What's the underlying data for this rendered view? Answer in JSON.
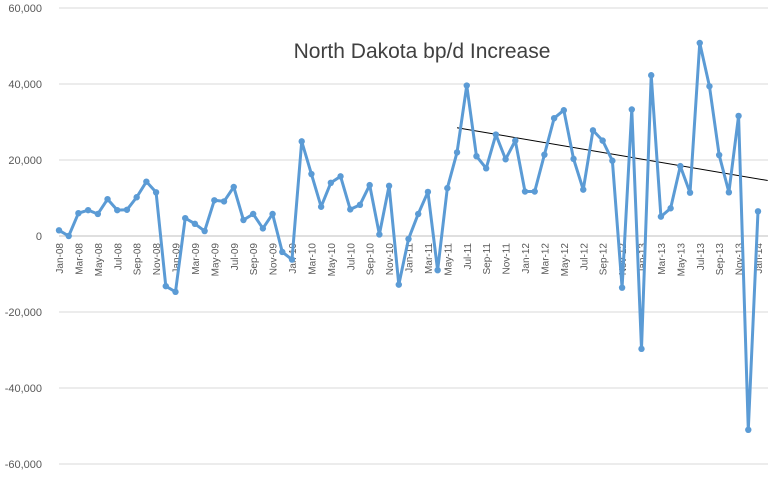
{
  "chart_data": {
    "type": "line",
    "title": "North Dakota bp/d Increase",
    "xlabel": "",
    "ylabel": "",
    "ylim": [
      -60000,
      60000
    ],
    "yticks": [
      -60000,
      -40000,
      -20000,
      0,
      20000,
      40000,
      60000
    ],
    "ytick_labels": [
      "-60,000",
      "-40,000",
      "-20,000",
      "0",
      "20,000",
      "40,000",
      "60,000"
    ],
    "grid": "horizontal",
    "legend": "none",
    "line_color": "#5B9BD5",
    "trendline_color": "#000000",
    "x": [
      "Jan-08",
      "Feb-08",
      "Mar-08",
      "Apr-08",
      "May-08",
      "Jun-08",
      "Jul-08",
      "Aug-08",
      "Sep-08",
      "Oct-08",
      "Nov-08",
      "Dec-08",
      "Jan-09",
      "Feb-09",
      "Mar-09",
      "Apr-09",
      "May-09",
      "Jun-09",
      "Jul-09",
      "Aug-09",
      "Sep-09",
      "Oct-09",
      "Nov-09",
      "Dec-09",
      "Jan-10",
      "Feb-10",
      "Mar-10",
      "Apr-10",
      "May-10",
      "Jun-10",
      "Jul-10",
      "Aug-10",
      "Sep-10",
      "Oct-10",
      "Nov-10",
      "Dec-10",
      "Jan-11",
      "Feb-11",
      "Mar-11",
      "Apr-11",
      "May-11",
      "Jun-11",
      "Jul-11",
      "Aug-11",
      "Sep-11",
      "Oct-11",
      "Nov-11",
      "Dec-11",
      "Jan-12",
      "Feb-12",
      "Mar-12",
      "Apr-12",
      "May-12",
      "Jun-12",
      "Jul-12",
      "Aug-12",
      "Sep-12",
      "Oct-12",
      "Nov-12",
      "Dec-12",
      "Jan-13",
      "Feb-13",
      "Mar-13",
      "Apr-13",
      "May-13",
      "Jun-13",
      "Jul-13",
      "Aug-13",
      "Sep-13",
      "Oct-13",
      "Nov-13",
      "Dec-13",
      "Jan-14"
    ],
    "xtick_labels": [
      "Jan-08",
      "Mar-08",
      "May-08",
      "Jul-08",
      "Sep-08",
      "Nov-08",
      "Jan-09",
      "Mar-09",
      "May-09",
      "Jul-09",
      "Sep-09",
      "Nov-09",
      "Jan-10",
      "Mar-10",
      "May-10",
      "Jul-10",
      "Sep-10",
      "Nov-10",
      "Jan-11",
      "Mar-11",
      "May-11",
      "Jul-11",
      "Sep-11",
      "Nov-11",
      "Jan-12",
      "Mar-12",
      "May-12",
      "Jul-12",
      "Sep-12",
      "Nov-12",
      "Jan-13",
      "Mar-13",
      "May-13",
      "Jul-13",
      "Sep-13",
      "Nov-13",
      "Jan-14"
    ],
    "series": [
      {
        "values": [
          1500,
          0,
          6000,
          6800,
          5800,
          9700,
          6800,
          6900,
          10200,
          14300,
          11500,
          -13200,
          -14700,
          4700,
          3200,
          1300,
          9400,
          9100,
          12900,
          4200,
          5800,
          2000,
          5800,
          -4200,
          -6200,
          24900,
          16300,
          7700,
          14000,
          15700,
          7000,
          8200,
          13400,
          400,
          13200,
          -12800,
          -800,
          5800,
          11600,
          -9000,
          12600,
          22000,
          39600,
          21000,
          17800,
          26700,
          20200,
          25100,
          11700,
          11700,
          21400,
          31000,
          33100,
          20300,
          12200,
          27800,
          25100,
          19800,
          -13600,
          33300,
          -29700,
          42300,
          5100,
          7300,
          18400,
          11400,
          50800,
          39400,
          21300,
          11500,
          31600,
          -51000,
          6500
        ]
      }
    ],
    "trendline": {
      "x_start": "Jun-11",
      "y_start": 28500,
      "x_end": "Feb-14",
      "y_end": 14600
    }
  }
}
